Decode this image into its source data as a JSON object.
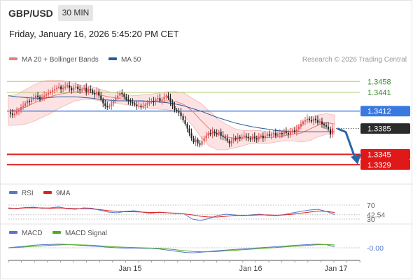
{
  "header": {
    "symbol": "GBP/USD",
    "timeframe": "30 MIN",
    "datetime": "Friday, January 16, 2026 5:45:20 PM CET"
  },
  "legend": {
    "ma20": {
      "label": "MA 20 + Bollinger Bands",
      "color": "#f07a7a"
    },
    "ma50": {
      "label": "MA 50",
      "color": "#2a5a9a"
    },
    "research": "Research © 2026 Trading Central"
  },
  "rsi_legend": {
    "rsi": {
      "label": "RSI",
      "color": "#5577cc"
    },
    "ma9": {
      "label": "9MA",
      "color": "#e02020"
    }
  },
  "macd_legend": {
    "macd": {
      "label": "MACD",
      "color": "#5577cc"
    },
    "signal": {
      "label": "MACD Signal",
      "color": "#55aa22"
    }
  },
  "colors": {
    "up": "#e05050",
    "down": "#222222",
    "resistance_green": "#a9cf6a",
    "pivot_blue": "#3a7ae0",
    "support_red": "#e01818",
    "arrow": "#2a66aa",
    "band_fill": "#fbd8d8"
  },
  "chart_data": [
    {
      "type": "candlestick",
      "title": "GBP/USD 30 MIN",
      "ylim": [
        1.33,
        1.348
      ],
      "x_tick_labels": [
        "Jan 15",
        "Jan 16",
        "Jan 17"
      ],
      "current_price": "1.3385",
      "levels": [
        {
          "value": "1.3458",
          "kind": "resistance"
        },
        {
          "value": "1.3441",
          "kind": "resistance"
        },
        {
          "value": "1.3412",
          "kind": "pivot"
        },
        {
          "value": "1.3345",
          "kind": "support"
        },
        {
          "value": "1.3329",
          "kind": "support"
        }
      ],
      "close_path": [
        1.341,
        1.3408,
        1.3406,
        1.3408,
        1.3412,
        1.3414,
        1.3418,
        1.342,
        1.3424,
        1.3428,
        1.3426,
        1.343,
        1.3432,
        1.3436,
        1.3434,
        1.343,
        1.3434,
        1.3436,
        1.3438,
        1.344,
        1.3442,
        1.3444,
        1.3446,
        1.3448,
        1.345,
        1.3446,
        1.3448,
        1.345,
        1.3452,
        1.3448,
        1.3444,
        1.3448,
        1.345,
        1.3446,
        1.3444,
        1.3446,
        1.3448,
        1.3442,
        1.3446,
        1.3444,
        1.344,
        1.3438,
        1.3442,
        1.3436,
        1.343,
        1.3424,
        1.342,
        1.3418,
        1.342,
        1.3424,
        1.3428,
        1.3432,
        1.3436,
        1.344,
        1.3438,
        1.3434,
        1.343,
        1.3428,
        1.3426,
        1.3424,
        1.3422,
        1.342,
        1.342,
        1.3418,
        1.342,
        1.3422,
        1.3424,
        1.3426,
        1.3428,
        1.3426,
        1.343,
        1.3432,
        1.3428,
        1.343,
        1.3434,
        1.3436,
        1.3432,
        1.3426,
        1.342,
        1.3414,
        1.3412,
        1.341,
        1.3404,
        1.3398,
        1.3392,
        1.3385,
        1.3378,
        1.337,
        1.3364,
        1.3368,
        1.3362,
        1.336,
        1.3366,
        1.337,
        1.3374,
        1.3378,
        1.3376,
        1.338,
        1.3378,
        1.3376,
        1.338,
        1.3374,
        1.3372,
        1.337,
        1.3366,
        1.3362,
        1.3366,
        1.337,
        1.3368,
        1.3372,
        1.337,
        1.3372,
        1.3374,
        1.3372,
        1.337,
        1.3368,
        1.3372,
        1.337,
        1.3368,
        1.3372,
        1.3374,
        1.337,
        1.3374,
        1.3376,
        1.3374,
        1.3376,
        1.3378,
        1.3374,
        1.3376,
        1.3378,
        1.3376,
        1.338,
        1.3378,
        1.3376,
        1.338,
        1.3382,
        1.338,
        1.3384,
        1.3388,
        1.3392,
        1.3396,
        1.3398,
        1.34,
        1.3398,
        1.3396,
        1.34,
        1.3398,
        1.3394,
        1.3396,
        1.3392,
        1.339,
        1.3388,
        1.3384,
        1.3376,
        1.3385
      ],
      "ma20": [
        1.3412,
        1.3414,
        1.3418,
        1.3424,
        1.343,
        1.3434,
        1.3438,
        1.344,
        1.3442,
        1.3441,
        1.344,
        1.3437,
        1.3434,
        1.3432,
        1.343,
        1.3428,
        1.3427,
        1.3426,
        1.3427,
        1.3428,
        1.3427,
        1.3422,
        1.3412,
        1.3398,
        1.3385,
        1.3376,
        1.3372,
        1.337,
        1.337,
        1.3372,
        1.3372,
        1.3371,
        1.3372,
        1.3374,
        1.3376,
        1.3378,
        1.3384,
        1.339,
        1.3394,
        1.3392
      ],
      "ma50": [
        1.3436,
        1.3434,
        1.3433,
        1.3432,
        1.3432,
        1.3433,
        1.3434,
        1.3434,
        1.3434,
        1.3433,
        1.3432,
        1.343,
        1.3429,
        1.3428,
        1.3428,
        1.3428,
        1.3428,
        1.3427,
        1.3426,
        1.3425,
        1.3423,
        1.342,
        1.3416,
        1.3412,
        1.3407,
        1.3402,
        1.3398,
        1.3394,
        1.3391,
        1.3388,
        1.3386,
        1.3384,
        1.3382,
        1.3381,
        1.338,
        1.338,
        1.338,
        1.338,
        1.338,
        1.338
      ],
      "bb_upper": [
        1.3435,
        1.3438,
        1.3445,
        1.3452,
        1.3458,
        1.346,
        1.346,
        1.3458,
        1.3454,
        1.3452,
        1.345,
        1.3446,
        1.3442,
        1.344,
        1.3438,
        1.3436,
        1.3437,
        1.3438,
        1.344,
        1.3442,
        1.3442,
        1.344,
        1.3432,
        1.3424,
        1.3412,
        1.34,
        1.3392,
        1.3385,
        1.3382,
        1.3382,
        1.3382,
        1.338,
        1.338,
        1.3382,
        1.3386,
        1.3392,
        1.3402,
        1.3406,
        1.3408,
        1.3406
      ],
      "bb_lower": [
        1.339,
        1.339,
        1.3392,
        1.3396,
        1.3402,
        1.3408,
        1.3416,
        1.3422,
        1.3428,
        1.343,
        1.343,
        1.3428,
        1.3426,
        1.3424,
        1.3422,
        1.342,
        1.3418,
        1.3416,
        1.3415,
        1.3414,
        1.3412,
        1.3404,
        1.339,
        1.3372,
        1.3358,
        1.3352,
        1.3352,
        1.3355,
        1.3358,
        1.3362,
        1.3362,
        1.3362,
        1.3364,
        1.3366,
        1.3366,
        1.3364,
        1.3366,
        1.3372,
        1.3376,
        1.3376
      ],
      "forecast_arrow": [
        1.3385,
        1.3337
      ]
    },
    {
      "type": "line",
      "title": "RSI",
      "ylim": [
        20,
        80
      ],
      "levels": [
        "70",
        "42.54",
        "30"
      ],
      "rsi": [
        62,
        60,
        63,
        64,
        61,
        62,
        65,
        60,
        58,
        62,
        61,
        55,
        50,
        48,
        52,
        54,
        50,
        46,
        50,
        48,
        46,
        45,
        30,
        26,
        32,
        40,
        44,
        42,
        40,
        42,
        44,
        41,
        40,
        43,
        48,
        52,
        56,
        58,
        52,
        43
      ],
      "ma9": [
        60,
        61,
        62,
        62,
        62,
        61,
        62,
        61,
        60,
        60,
        59,
        57,
        54,
        52,
        51,
        51,
        50,
        49,
        49,
        48,
        47,
        45,
        42,
        38,
        36,
        36,
        38,
        40,
        41,
        41,
        42,
        42,
        41,
        42,
        44,
        47,
        50,
        53,
        52,
        49
      ]
    },
    {
      "type": "line",
      "title": "MACD",
      "ylim": [
        -0.003,
        0.003
      ],
      "current": "-0.00",
      "macd": [
        0.0,
        0.0003,
        0.0006,
        0.0009,
        0.0011,
        0.0012,
        0.0013,
        0.0012,
        0.001,
        0.0008,
        0.0006,
        0.0004,
        0.0002,
        0.0,
        -0.0001,
        -0.0001,
        -0.0002,
        -0.0002,
        -0.0004,
        -0.0008,
        -0.0012,
        -0.0016,
        -0.0018,
        -0.0016,
        -0.0013,
        -0.001,
        -0.0008,
        -0.0006,
        -0.0004,
        -0.0002,
        0.0,
        0.0002,
        0.0004,
        0.0006,
        0.0008,
        0.001,
        0.0012,
        0.0013,
        0.0011,
        0.0004
      ],
      "signal": [
        0.0,
        0.0001,
        0.0003,
        0.0005,
        0.0007,
        0.0009,
        0.001,
        0.0011,
        0.0011,
        0.001,
        0.0009,
        0.0007,
        0.0005,
        0.0003,
        0.0002,
        0.0001,
        0.0,
        -0.0001,
        -0.0002,
        -0.0004,
        -0.0007,
        -0.001,
        -0.0013,
        -0.0014,
        -0.0014,
        -0.0013,
        -0.0011,
        -0.0009,
        -0.0007,
        -0.0005,
        -0.0003,
        -0.0001,
        0.0001,
        0.0003,
        0.0005,
        0.0007,
        0.0009,
        0.0011,
        0.0012,
        0.001
      ]
    }
  ]
}
